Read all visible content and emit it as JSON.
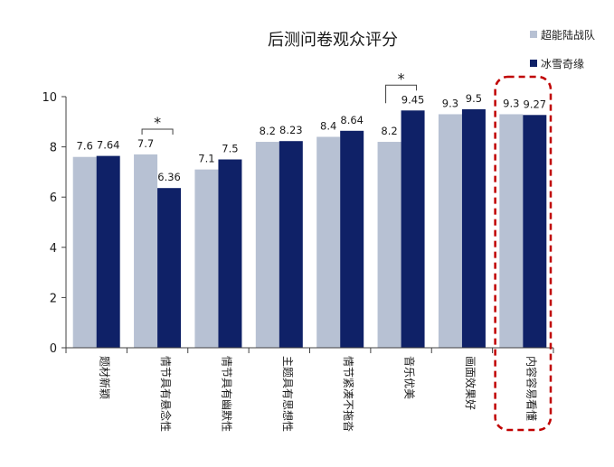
{
  "chart_data": {
    "type": "bar",
    "title": "后测问卷观众评分",
    "categories": [
      "题材新颖",
      "情节具有悬念性",
      "情节具有幽默性",
      "主题具有思想性",
      "情节紧凑不拖沓",
      "音乐优美",
      "画面效果好",
      "内容容易看懂"
    ],
    "series": [
      {
        "name": "超能陆战队",
        "values": [
          7.6,
          7.7,
          7.1,
          8.2,
          8.4,
          8.2,
          9.3,
          9.3
        ],
        "labels": [
          "7.6",
          "7.7",
          "7.1",
          "8.2",
          "8.4",
          "8.2",
          "9.3",
          "9.3"
        ]
      },
      {
        "name": "冰雪奇缘",
        "values": [
          7.64,
          6.36,
          7.5,
          8.23,
          8.64,
          9.45,
          9.5,
          9.27
        ],
        "labels": [
          "7.64",
          "6.36",
          "7.5",
          "8.23",
          "8.64",
          "9.45",
          "9.5",
          "9.27"
        ]
      }
    ],
    "ylim": [
      0,
      10
    ],
    "yticks": [
      "0",
      "2",
      "4",
      "6",
      "8",
      "10"
    ],
    "grid": false,
    "legend_position": "top-right",
    "significance": [
      {
        "category_index": 1,
        "symbol": "*"
      },
      {
        "category_index": 5,
        "symbol": "*"
      }
    ],
    "highlight_category_index": 7,
    "colors": {
      "series": [
        "#B7C1D3",
        "#0F2167"
      ],
      "axis": "#404040",
      "highlight": "#C00000",
      "text": "#1a1a1a"
    }
  }
}
